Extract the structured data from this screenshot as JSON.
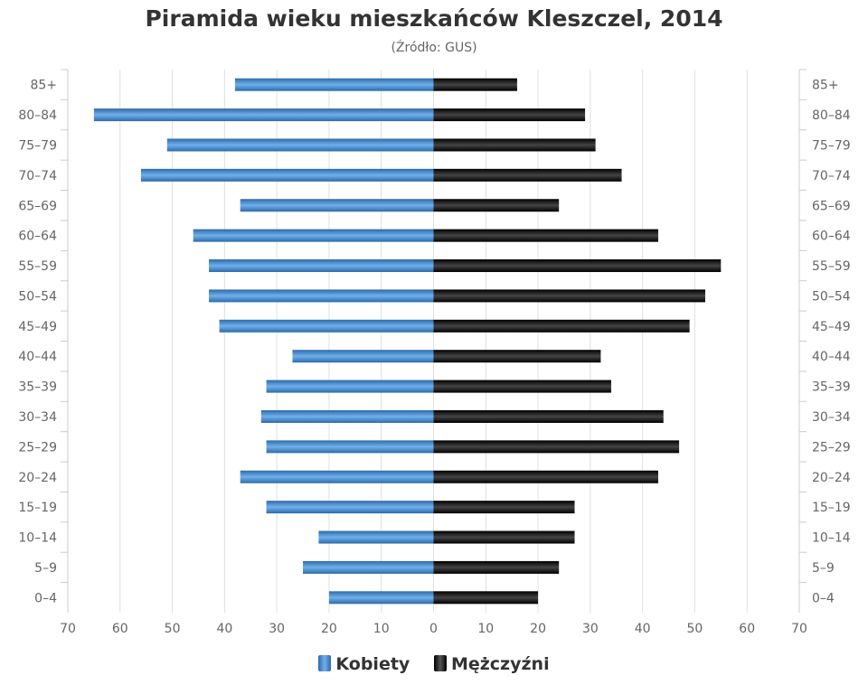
{
  "chart_data": {
    "type": "bar",
    "orientation": "horizontal-pyramid",
    "title": "Piramida wieku mieszkańców Kleszczel, 2014",
    "subtitle": "(Źródło: GUS)",
    "categories": [
      "85+",
      "80-84",
      "75-79",
      "70-74",
      "65-69",
      "60-64",
      "55-59",
      "50-54",
      "45-49",
      "40-44",
      "35-39",
      "30-34",
      "25-29",
      "20-24",
      "15-19",
      "10-14",
      "5-9",
      "0-4"
    ],
    "series": [
      {
        "name": "Kobiety",
        "color": "#4a8bd0",
        "side": "left",
        "values": [
          38,
          65,
          51,
          56,
          37,
          46,
          43,
          43,
          41,
          27,
          32,
          33,
          32,
          37,
          32,
          22,
          25,
          20
        ]
      },
      {
        "name": "Mężczyźni",
        "color": "#222222",
        "side": "right",
        "values": [
          16,
          29,
          31,
          36,
          24,
          43,
          55,
          52,
          49,
          32,
          34,
          44,
          47,
          43,
          27,
          27,
          24,
          20
        ]
      }
    ],
    "xticks": [
      "70",
      "60",
      "50",
      "40",
      "30",
      "20",
      "10",
      "0",
      "10",
      "20",
      "30",
      "40",
      "50",
      "60",
      "70"
    ],
    "xlim": [
      -70,
      70
    ],
    "grid": true,
    "legend": "bottom-center"
  }
}
